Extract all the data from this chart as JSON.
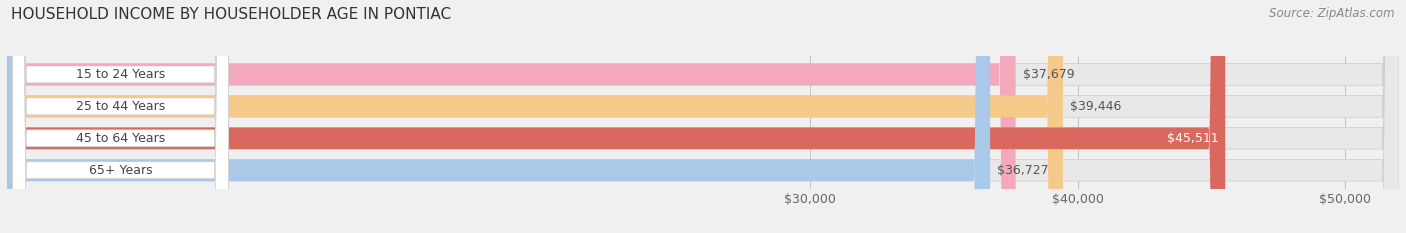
{
  "title": "HOUSEHOLD INCOME BY HOUSEHOLDER AGE IN PONTIAC",
  "source": "Source: ZipAtlas.com",
  "categories": [
    "15 to 24 Years",
    "25 to 44 Years",
    "45 to 64 Years",
    "65+ Years"
  ],
  "values": [
    37679,
    39446,
    45511,
    36727
  ],
  "bar_colors": [
    "#f4a8bc",
    "#f5c98a",
    "#d9695f",
    "#aac8e8"
  ],
  "value_labels": [
    "$37,679",
    "$39,446",
    "$45,511",
    "$36,727"
  ],
  "value_label_colors": [
    "#555555",
    "#555555",
    "#ffffff",
    "#555555"
  ],
  "x_min": 0,
  "x_max": 52000,
  "x_ticks": [
    30000,
    40000,
    50000
  ],
  "x_tick_labels": [
    "$30,000",
    "$40,000",
    "$50,000"
  ],
  "background_color": "#f0f0f0",
  "bar_bg_color": "#e0e0e0",
  "row_bg_color": "#e8e8e8",
  "title_fontsize": 11,
  "source_fontsize": 8.5,
  "tick_fontsize": 9,
  "label_fontsize": 9,
  "category_fontsize": 9
}
